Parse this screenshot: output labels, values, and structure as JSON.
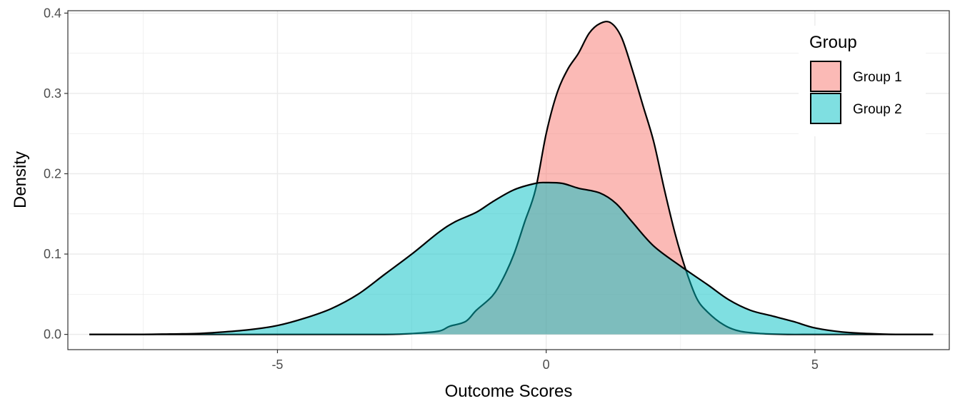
{
  "chart_data": {
    "type": "area",
    "subtype": "density",
    "xlabel": "Outcome Scores",
    "ylabel": "Density",
    "xlim": [
      -8.9,
      7.5
    ],
    "ylim": [
      -0.019,
      0.403
    ],
    "x_ticks": [
      -5,
      0,
      5
    ],
    "x_tick_labels": [
      "-5",
      "0",
      "5"
    ],
    "y_ticks": [
      0.0,
      0.1,
      0.2,
      0.3,
      0.4
    ],
    "y_tick_labels": [
      "0.0",
      "0.1",
      "0.2",
      "0.3",
      "0.4"
    ],
    "grid": true,
    "legend": {
      "title": "Group",
      "position": "top-right"
    },
    "series": [
      {
        "name": "Group 1",
        "color": "#F8766D",
        "fill_opacity": 0.5,
        "points": [
          [
            -8.5,
            0.0
          ],
          [
            -6.0,
            0.0
          ],
          [
            -4.0,
            0.0
          ],
          [
            -3.0,
            0.0
          ],
          [
            -2.5,
            0.001
          ],
          [
            -2.0,
            0.004
          ],
          [
            -1.8,
            0.01
          ],
          [
            -1.5,
            0.016
          ],
          [
            -1.3,
            0.03
          ],
          [
            -1.0,
            0.048
          ],
          [
            -0.8,
            0.07
          ],
          [
            -0.6,
            0.1
          ],
          [
            -0.4,
            0.14
          ],
          [
            -0.2,
            0.18
          ],
          [
            0.0,
            0.25
          ],
          [
            0.2,
            0.3
          ],
          [
            0.4,
            0.33
          ],
          [
            0.6,
            0.35
          ],
          [
            0.8,
            0.375
          ],
          [
            1.0,
            0.387
          ],
          [
            1.2,
            0.388
          ],
          [
            1.4,
            0.37
          ],
          [
            1.6,
            0.33
          ],
          [
            1.8,
            0.285
          ],
          [
            2.0,
            0.24
          ],
          [
            2.2,
            0.18
          ],
          [
            2.4,
            0.125
          ],
          [
            2.6,
            0.08
          ],
          [
            2.8,
            0.045
          ],
          [
            3.0,
            0.028
          ],
          [
            3.3,
            0.012
          ],
          [
            3.6,
            0.004
          ],
          [
            4.0,
            0.001
          ],
          [
            4.5,
            0.0
          ],
          [
            5.0,
            0.0
          ],
          [
            6.0,
            0.0
          ],
          [
            7.2,
            0.0
          ]
        ]
      },
      {
        "name": "Group 2",
        "color": "#00BFC4",
        "fill_opacity": 0.5,
        "points": [
          [
            -8.5,
            0.0
          ],
          [
            -7.5,
            0.0
          ],
          [
            -7.0,
            0.0005
          ],
          [
            -6.5,
            0.001
          ],
          [
            -6.0,
            0.003
          ],
          [
            -5.5,
            0.006
          ],
          [
            -5.0,
            0.011
          ],
          [
            -4.5,
            0.02
          ],
          [
            -4.0,
            0.032
          ],
          [
            -3.5,
            0.05
          ],
          [
            -3.0,
            0.075
          ],
          [
            -2.5,
            0.1
          ],
          [
            -2.0,
            0.127
          ],
          [
            -1.7,
            0.14
          ],
          [
            -1.3,
            0.152
          ],
          [
            -1.0,
            0.165
          ],
          [
            -0.6,
            0.18
          ],
          [
            -0.2,
            0.188
          ],
          [
            0.0,
            0.189
          ],
          [
            0.3,
            0.188
          ],
          [
            0.6,
            0.182
          ],
          [
            1.0,
            0.176
          ],
          [
            1.3,
            0.163
          ],
          [
            1.6,
            0.14
          ],
          [
            2.0,
            0.11
          ],
          [
            2.5,
            0.085
          ],
          [
            3.0,
            0.062
          ],
          [
            3.4,
            0.043
          ],
          [
            3.8,
            0.03
          ],
          [
            4.2,
            0.023
          ],
          [
            4.6,
            0.016
          ],
          [
            5.0,
            0.008
          ],
          [
            5.5,
            0.003
          ],
          [
            6.0,
            0.001
          ],
          [
            6.5,
            0.0
          ],
          [
            7.2,
            0.0
          ]
        ]
      }
    ]
  }
}
